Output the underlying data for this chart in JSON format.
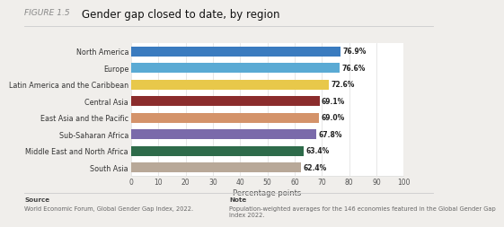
{
  "title": "Gender gap closed to date, by region",
  "figure_label": "FIGURE 1.5",
  "categories": [
    "North America",
    "Europe",
    "Latin America and the Caribbean",
    "Central Asia",
    "East Asia and the Pacific",
    "Sub-Saharan Africa",
    "Middle East and North Africa",
    "South Asia"
  ],
  "values": [
    76.9,
    76.6,
    72.6,
    69.1,
    69.0,
    67.8,
    63.4,
    62.4
  ],
  "bar_colors": [
    "#3a7bbf",
    "#5aaad4",
    "#e8c84a",
    "#8b2c2c",
    "#d4936a",
    "#7a6aaa",
    "#2e6b4a",
    "#b8a898"
  ],
  "xlabel": "Percentage points",
  "xlim": [
    0,
    100
  ],
  "xticks": [
    0,
    10,
    20,
    30,
    40,
    50,
    60,
    70,
    80,
    90,
    100
  ],
  "background_color": "#f0eeeb",
  "chart_bg_color": "#ffffff",
  "bar_height": 0.6,
  "title_fontsize": 8.5,
  "figure_label_fontsize": 6.5,
  "label_fontsize": 5.8,
  "value_fontsize": 5.5,
  "xlabel_fontsize": 6,
  "xtick_fontsize": 5.5,
  "source_text": "Source",
  "source_body": "World Economic Forum, Global Gender Gap Index, 2022.",
  "note_text": "Note",
  "note_body": "Population-weighted averages for the 146 economies featured in the Global Gender Gap\nIndex 2022.",
  "footer_fontsize": 4.8,
  "footer_header_fontsize": 5.2,
  "value_color": "#222222",
  "label_color": "#333333",
  "tick_color": "#555555",
  "grid_color": "#dddddd",
  "footer_line_color": "#cccccc",
  "figure_label_color": "#888888",
  "title_color": "#111111"
}
